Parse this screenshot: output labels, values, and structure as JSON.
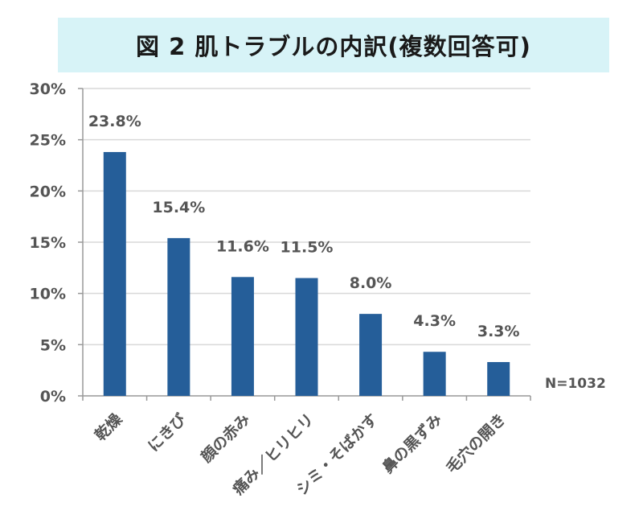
{
  "chart_data": {
    "type": "bar",
    "title": "図 2  肌トラブルの内訳(複数回答可)",
    "categories": [
      "乾燥",
      "にきび",
      "顔の赤み",
      "痛み／ヒリヒリ",
      "シミ・そばかす",
      "鼻の黒ずみ",
      "毛穴の開き"
    ],
    "values": [
      23.8,
      15.4,
      11.6,
      11.5,
      8.0,
      4.3,
      3.3
    ],
    "data_labels": [
      "23.8%",
      "15.4%",
      "11.6%",
      "11.5%",
      "8.0%",
      "4.3%",
      "3.3%"
    ],
    "ylim": [
      0,
      30
    ],
    "yticks": [
      0,
      5,
      10,
      15,
      20,
      25,
      30
    ],
    "ytick_labels": [
      "0%",
      "5%",
      "10%",
      "15%",
      "20%",
      "25%",
      "30%"
    ],
    "grid": true,
    "bar_color": "#255e99",
    "note": "N=1032"
  }
}
